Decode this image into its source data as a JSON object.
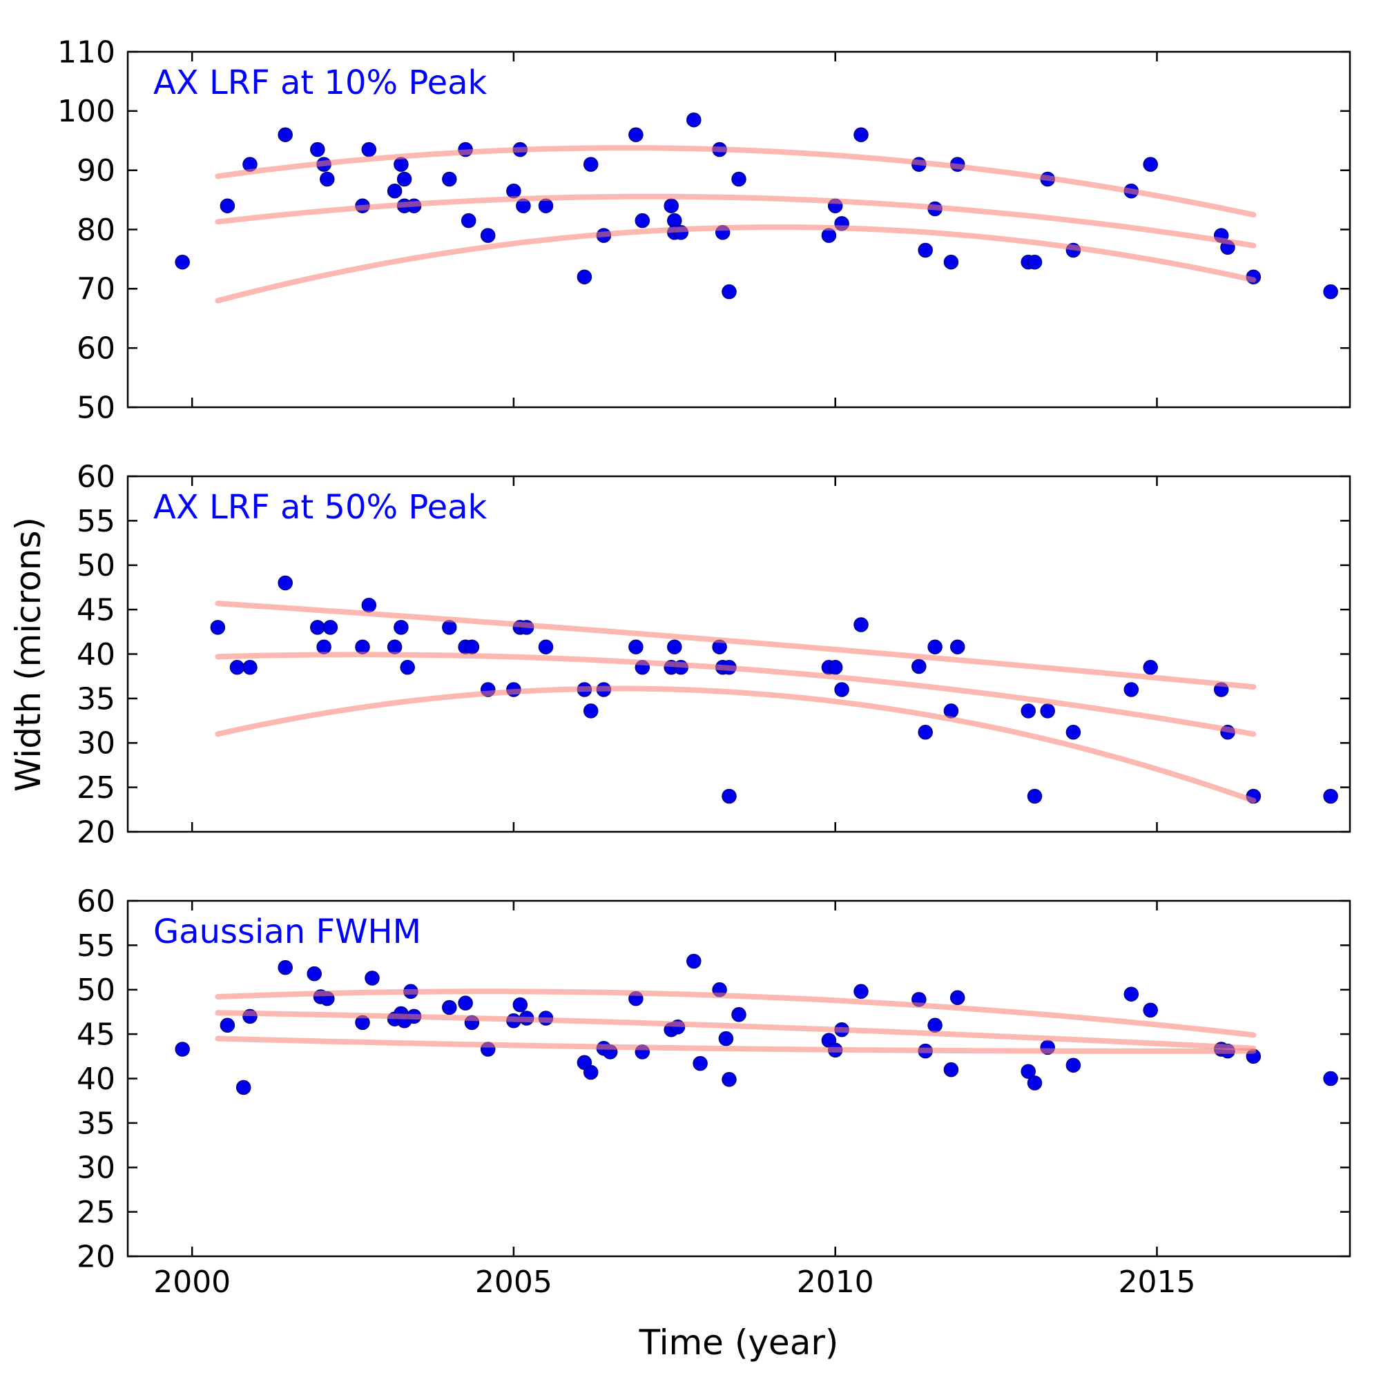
{
  "figure": {
    "xlabel": "Time (year)",
    "ylabel": "Width (microns)",
    "title_color": "#0000ff",
    "point_color": "#0000ee",
    "point_edge_color": "#00008b",
    "curve_color": "#fa8072",
    "curve_opacity": 0.55,
    "axes_color": "#000000"
  },
  "chart_data": [
    {
      "type": "scatter",
      "title": "AX LRF at 10% Peak",
      "xlim": [
        1999.0,
        2018.0
      ],
      "ylim": [
        50,
        110
      ],
      "xticks": [
        2000,
        2005,
        2010,
        2015
      ],
      "yticks": [
        50,
        60,
        70,
        80,
        90,
        100,
        110
      ],
      "show_xticklabels": false,
      "grid": false,
      "points": [
        [
          1999.85,
          74.5
        ],
        [
          2000.55,
          84.0
        ],
        [
          2000.9,
          91.0
        ],
        [
          2001.45,
          96.0
        ],
        [
          2001.95,
          93.5
        ],
        [
          2002.05,
          91.0
        ],
        [
          2002.1,
          88.5
        ],
        [
          2002.65,
          84.0
        ],
        [
          2002.75,
          93.5
        ],
        [
          2003.15,
          86.5
        ],
        [
          2003.25,
          91.0
        ],
        [
          2003.3,
          88.5
        ],
        [
          2003.3,
          84.0
        ],
        [
          2003.45,
          84.0
        ],
        [
          2004.0,
          88.5
        ],
        [
          2004.25,
          93.5
        ],
        [
          2004.3,
          81.5
        ],
        [
          2004.6,
          79.0
        ],
        [
          2005.0,
          86.5
        ],
        [
          2005.1,
          93.5
        ],
        [
          2005.15,
          84.0
        ],
        [
          2005.5,
          84.0
        ],
        [
          2006.1,
          72.0
        ],
        [
          2006.2,
          91.0
        ],
        [
          2006.4,
          79.0
        ],
        [
          2006.9,
          96.0
        ],
        [
          2007.0,
          81.5
        ],
        [
          2007.45,
          84.0
        ],
        [
          2007.5,
          81.5
        ],
        [
          2007.5,
          79.5
        ],
        [
          2007.6,
          79.5
        ],
        [
          2007.8,
          98.5
        ],
        [
          2008.2,
          93.5
        ],
        [
          2008.25,
          79.5
        ],
        [
          2008.35,
          69.5
        ],
        [
          2008.5,
          88.5
        ],
        [
          2009.9,
          79.0
        ],
        [
          2010.0,
          84.0
        ],
        [
          2010.1,
          81.0
        ],
        [
          2010.4,
          96.0
        ],
        [
          2011.3,
          91.0
        ],
        [
          2011.4,
          76.5
        ],
        [
          2011.55,
          83.5
        ],
        [
          2011.8,
          74.5
        ],
        [
          2011.9,
          91.0
        ],
        [
          2013.0,
          74.5
        ],
        [
          2013.1,
          74.5
        ],
        [
          2013.3,
          88.5
        ],
        [
          2013.7,
          76.5
        ],
        [
          2014.6,
          86.5
        ],
        [
          2014.9,
          91.0
        ],
        [
          2016.0,
          79.0
        ],
        [
          2016.1,
          77.0
        ],
        [
          2016.5,
          72.0
        ],
        [
          2017.7,
          69.5
        ]
      ],
      "fit_curves": [
        [
          [
            2000.4,
            89.0
          ],
          [
            2008.0,
            93.6
          ],
          [
            2016.5,
            82.5
          ]
        ],
        [
          [
            2000.4,
            81.3
          ],
          [
            2008.0,
            85.5
          ],
          [
            2016.5,
            77.3
          ]
        ],
        [
          [
            2000.4,
            68.0
          ],
          [
            2009.0,
            80.4
          ],
          [
            2016.5,
            71.5
          ]
        ]
      ]
    },
    {
      "type": "scatter",
      "title": "AX LRF at 50% Peak",
      "xlim": [
        1999.0,
        2018.0
      ],
      "ylim": [
        20,
        60
      ],
      "xticks": [
        2000,
        2005,
        2010,
        2015
      ],
      "yticks": [
        20,
        25,
        30,
        35,
        40,
        45,
        50,
        55,
        60
      ],
      "show_xticklabels": false,
      "grid": false,
      "points": [
        [
          2000.4,
          43.0
        ],
        [
          2000.7,
          38.5
        ],
        [
          2000.9,
          38.5
        ],
        [
          2001.45,
          48.0
        ],
        [
          2001.95,
          43.0
        ],
        [
          2002.05,
          40.8
        ],
        [
          2002.15,
          43.0
        ],
        [
          2002.65,
          40.8
        ],
        [
          2002.75,
          45.5
        ],
        [
          2003.15,
          40.8
        ],
        [
          2003.25,
          43.0
        ],
        [
          2003.35,
          38.5
        ],
        [
          2004.0,
          43.0
        ],
        [
          2004.25,
          40.8
        ],
        [
          2004.35,
          40.8
        ],
        [
          2004.6,
          36.0
        ],
        [
          2005.0,
          36.0
        ],
        [
          2005.1,
          43.0
        ],
        [
          2005.2,
          43.0
        ],
        [
          2005.5,
          40.8
        ],
        [
          2006.1,
          36.0
        ],
        [
          2006.2,
          33.6
        ],
        [
          2006.4,
          36.0
        ],
        [
          2006.9,
          40.8
        ],
        [
          2007.0,
          38.5
        ],
        [
          2007.45,
          38.5
        ],
        [
          2007.5,
          40.8
        ],
        [
          2007.6,
          38.5
        ],
        [
          2008.2,
          40.8
        ],
        [
          2008.25,
          38.5
        ],
        [
          2008.35,
          38.5
        ],
        [
          2008.35,
          24.0
        ],
        [
          2009.9,
          38.5
        ],
        [
          2010.0,
          38.5
        ],
        [
          2010.1,
          36.0
        ],
        [
          2010.4,
          43.3
        ],
        [
          2011.3,
          38.6
        ],
        [
          2011.4,
          31.2
        ],
        [
          2011.55,
          40.8
        ],
        [
          2011.8,
          33.6
        ],
        [
          2011.9,
          40.8
        ],
        [
          2013.0,
          33.6
        ],
        [
          2013.1,
          24.0
        ],
        [
          2013.3,
          33.6
        ],
        [
          2013.7,
          31.2
        ],
        [
          2014.6,
          36.0
        ],
        [
          2014.9,
          38.5
        ],
        [
          2016.0,
          36.0
        ],
        [
          2016.1,
          31.2
        ],
        [
          2016.5,
          24.0
        ],
        [
          2017.7,
          24.0
        ]
      ],
      "fit_curves": [
        [
          [
            2000.4,
            45.7
          ],
          [
            2008.5,
            41.4
          ],
          [
            2016.5,
            36.3
          ]
        ],
        [
          [
            2000.4,
            39.7
          ],
          [
            2008.0,
            38.6
          ],
          [
            2016.5,
            31.0
          ]
        ],
        [
          [
            2000.4,
            31.0
          ],
          [
            2007.0,
            36.1
          ],
          [
            2016.5,
            23.5
          ]
        ]
      ]
    },
    {
      "type": "scatter",
      "title": "Gaussian FWHM",
      "xlim": [
        1999.0,
        2018.0
      ],
      "ylim": [
        20,
        60
      ],
      "xticks": [
        2000,
        2005,
        2010,
        2015
      ],
      "yticks": [
        20,
        25,
        30,
        35,
        40,
        45,
        50,
        55,
        60
      ],
      "show_xticklabels": true,
      "grid": false,
      "points": [
        [
          1999.85,
          43.3
        ],
        [
          2000.55,
          46.0
        ],
        [
          2000.8,
          39.0
        ],
        [
          2000.9,
          47.0
        ],
        [
          2001.45,
          52.5
        ],
        [
          2001.9,
          51.8
        ],
        [
          2002.0,
          49.2
        ],
        [
          2002.1,
          49.0
        ],
        [
          2002.65,
          46.3
        ],
        [
          2002.8,
          51.3
        ],
        [
          2003.15,
          46.7
        ],
        [
          2003.25,
          47.3
        ],
        [
          2003.3,
          46.5
        ],
        [
          2003.4,
          49.8
        ],
        [
          2003.45,
          47.0
        ],
        [
          2004.0,
          48.0
        ],
        [
          2004.25,
          48.5
        ],
        [
          2004.35,
          46.3
        ],
        [
          2004.6,
          43.3
        ],
        [
          2005.0,
          46.5
        ],
        [
          2005.1,
          48.3
        ],
        [
          2005.2,
          46.8
        ],
        [
          2005.5,
          46.8
        ],
        [
          2006.1,
          41.8
        ],
        [
          2006.2,
          40.7
        ],
        [
          2006.4,
          43.4
        ],
        [
          2006.5,
          43.0
        ],
        [
          2006.9,
          49.0
        ],
        [
          2007.0,
          43.0
        ],
        [
          2007.45,
          45.5
        ],
        [
          2007.55,
          45.8
        ],
        [
          2007.8,
          53.2
        ],
        [
          2007.9,
          41.7
        ],
        [
          2008.2,
          50.0
        ],
        [
          2008.3,
          44.5
        ],
        [
          2008.35,
          39.9
        ],
        [
          2008.5,
          47.2
        ],
        [
          2009.9,
          44.3
        ],
        [
          2010.0,
          43.2
        ],
        [
          2010.1,
          45.5
        ],
        [
          2010.4,
          49.8
        ],
        [
          2011.3,
          48.9
        ],
        [
          2011.4,
          43.1
        ],
        [
          2011.55,
          46.0
        ],
        [
          2011.8,
          41.0
        ],
        [
          2011.9,
          49.1
        ],
        [
          2013.0,
          40.8
        ],
        [
          2013.1,
          39.5
        ],
        [
          2013.3,
          43.5
        ],
        [
          2013.7,
          41.5
        ],
        [
          2014.6,
          49.5
        ],
        [
          2014.9,
          47.7
        ],
        [
          2016.0,
          43.3
        ],
        [
          2016.1,
          43.1
        ],
        [
          2016.5,
          42.5
        ],
        [
          2017.7,
          40.0
        ]
      ],
      "fit_curves": [
        [
          [
            2000.4,
            49.2
          ],
          [
            2008.0,
            49.4
          ],
          [
            2016.5,
            44.9
          ]
        ],
        [
          [
            2000.4,
            47.4
          ],
          [
            2008.5,
            45.9
          ],
          [
            2016.5,
            43.4
          ]
        ],
        [
          [
            2000.4,
            44.5
          ],
          [
            2008.0,
            43.4
          ],
          [
            2016.5,
            43.1
          ]
        ]
      ]
    }
  ]
}
